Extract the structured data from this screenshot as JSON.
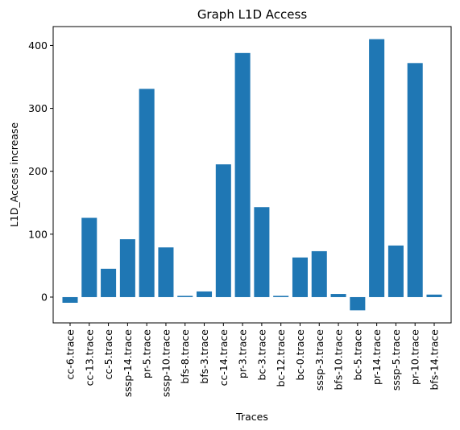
{
  "chart_data": {
    "type": "bar",
    "title": "Graph L1D Access",
    "xlabel": "Traces",
    "ylabel": "L1D_Access increase",
    "categories": [
      "cc-6.trace",
      "cc-13.trace",
      "cc-5.trace",
      "sssp-14.trace",
      "pr-5.trace",
      "sssp-10.trace",
      "bfs-8.trace",
      "bfs-3.trace",
      "cc-14.trace",
      "pr-3.trace",
      "bc-3.trace",
      "bc-12.trace",
      "bc-0.trace",
      "sssp-3.trace",
      "bfs-10.trace",
      "bc-5.trace",
      "pr-14.trace",
      "sssp-5.trace",
      "pr-10.trace",
      "bfs-14.trace"
    ],
    "values": [
      -9,
      126,
      45,
      92,
      331,
      79,
      2,
      9,
      211,
      388,
      143,
      2,
      63,
      73,
      5,
      -21,
      410,
      82,
      372,
      4
    ],
    "ylim": [
      -41,
      430
    ],
    "yticks": [
      "0",
      "100",
      "200",
      "300",
      "400"
    ],
    "bar_color": "#1f77b4",
    "grid": false
  }
}
